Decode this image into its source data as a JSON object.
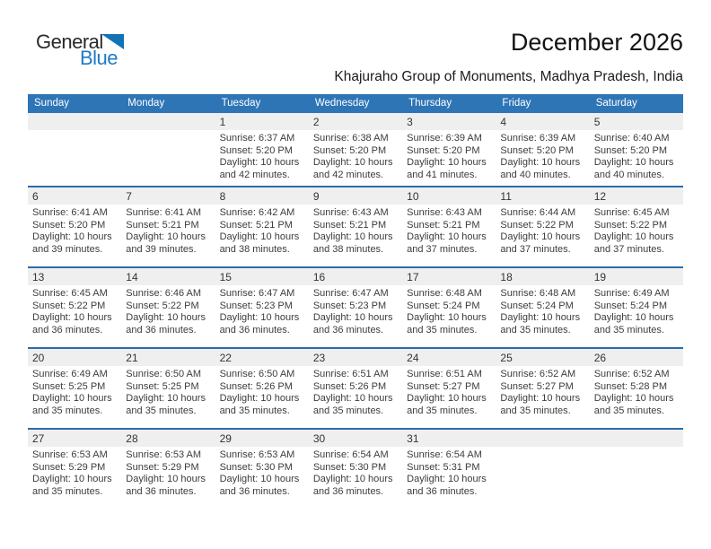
{
  "logo": {
    "line1": "General",
    "line2": "Blue"
  },
  "header": {
    "title": "December 2026",
    "subtitle": "Khajuraho Group of Monuments, Madhya Pradesh, India"
  },
  "colors": {
    "header_bg": "#2E75B6",
    "week_divider": "#2B6CA8",
    "day_strip_bg": "#EFEFEF",
    "header_text": "#FFFFFF",
    "body_text": "#3C3C3C",
    "logo_dark": "#2A2A2A",
    "logo_blue": "#1E7AC6",
    "logo_triangle": "#1371B5"
  },
  "labels": {
    "sunrise": "Sunrise:",
    "sunset": "Sunset:",
    "daylight": "Daylight:"
  },
  "weekdays": [
    "Sunday",
    "Monday",
    "Tuesday",
    "Wednesday",
    "Thursday",
    "Friday",
    "Saturday"
  ],
  "weeks": [
    [
      null,
      null,
      {
        "day": "1",
        "sunrise": "6:37 AM",
        "sunset": "5:20 PM",
        "daylight": "10 hours and 42 minutes."
      },
      {
        "day": "2",
        "sunrise": "6:38 AM",
        "sunset": "5:20 PM",
        "daylight": "10 hours and 42 minutes."
      },
      {
        "day": "3",
        "sunrise": "6:39 AM",
        "sunset": "5:20 PM",
        "daylight": "10 hours and 41 minutes."
      },
      {
        "day": "4",
        "sunrise": "6:39 AM",
        "sunset": "5:20 PM",
        "daylight": "10 hours and 40 minutes."
      },
      {
        "day": "5",
        "sunrise": "6:40 AM",
        "sunset": "5:20 PM",
        "daylight": "10 hours and 40 minutes."
      }
    ],
    [
      {
        "day": "6",
        "sunrise": "6:41 AM",
        "sunset": "5:20 PM",
        "daylight": "10 hours and 39 minutes."
      },
      {
        "day": "7",
        "sunrise": "6:41 AM",
        "sunset": "5:21 PM",
        "daylight": "10 hours and 39 minutes."
      },
      {
        "day": "8",
        "sunrise": "6:42 AM",
        "sunset": "5:21 PM",
        "daylight": "10 hours and 38 minutes."
      },
      {
        "day": "9",
        "sunrise": "6:43 AM",
        "sunset": "5:21 PM",
        "daylight": "10 hours and 38 minutes."
      },
      {
        "day": "10",
        "sunrise": "6:43 AM",
        "sunset": "5:21 PM",
        "daylight": "10 hours and 37 minutes."
      },
      {
        "day": "11",
        "sunrise": "6:44 AM",
        "sunset": "5:22 PM",
        "daylight": "10 hours and 37 minutes."
      },
      {
        "day": "12",
        "sunrise": "6:45 AM",
        "sunset": "5:22 PM",
        "daylight": "10 hours and 37 minutes."
      }
    ],
    [
      {
        "day": "13",
        "sunrise": "6:45 AM",
        "sunset": "5:22 PM",
        "daylight": "10 hours and 36 minutes."
      },
      {
        "day": "14",
        "sunrise": "6:46 AM",
        "sunset": "5:22 PM",
        "daylight": "10 hours and 36 minutes."
      },
      {
        "day": "15",
        "sunrise": "6:47 AM",
        "sunset": "5:23 PM",
        "daylight": "10 hours and 36 minutes."
      },
      {
        "day": "16",
        "sunrise": "6:47 AM",
        "sunset": "5:23 PM",
        "daylight": "10 hours and 36 minutes."
      },
      {
        "day": "17",
        "sunrise": "6:48 AM",
        "sunset": "5:24 PM",
        "daylight": "10 hours and 35 minutes."
      },
      {
        "day": "18",
        "sunrise": "6:48 AM",
        "sunset": "5:24 PM",
        "daylight": "10 hours and 35 minutes."
      },
      {
        "day": "19",
        "sunrise": "6:49 AM",
        "sunset": "5:24 PM",
        "daylight": "10 hours and 35 minutes."
      }
    ],
    [
      {
        "day": "20",
        "sunrise": "6:49 AM",
        "sunset": "5:25 PM",
        "daylight": "10 hours and 35 minutes."
      },
      {
        "day": "21",
        "sunrise": "6:50 AM",
        "sunset": "5:25 PM",
        "daylight": "10 hours and 35 minutes."
      },
      {
        "day": "22",
        "sunrise": "6:50 AM",
        "sunset": "5:26 PM",
        "daylight": "10 hours and 35 minutes."
      },
      {
        "day": "23",
        "sunrise": "6:51 AM",
        "sunset": "5:26 PM",
        "daylight": "10 hours and 35 minutes."
      },
      {
        "day": "24",
        "sunrise": "6:51 AM",
        "sunset": "5:27 PM",
        "daylight": "10 hours and 35 minutes."
      },
      {
        "day": "25",
        "sunrise": "6:52 AM",
        "sunset": "5:27 PM",
        "daylight": "10 hours and 35 minutes."
      },
      {
        "day": "26",
        "sunrise": "6:52 AM",
        "sunset": "5:28 PM",
        "daylight": "10 hours and 35 minutes."
      }
    ],
    [
      {
        "day": "27",
        "sunrise": "6:53 AM",
        "sunset": "5:29 PM",
        "daylight": "10 hours and 35 minutes."
      },
      {
        "day": "28",
        "sunrise": "6:53 AM",
        "sunset": "5:29 PM",
        "daylight": "10 hours and 36 minutes."
      },
      {
        "day": "29",
        "sunrise": "6:53 AM",
        "sunset": "5:30 PM",
        "daylight": "10 hours and 36 minutes."
      },
      {
        "day": "30",
        "sunrise": "6:54 AM",
        "sunset": "5:30 PM",
        "daylight": "10 hours and 36 minutes."
      },
      {
        "day": "31",
        "sunrise": "6:54 AM",
        "sunset": "5:31 PM",
        "daylight": "10 hours and 36 minutes."
      },
      null,
      null
    ]
  ]
}
